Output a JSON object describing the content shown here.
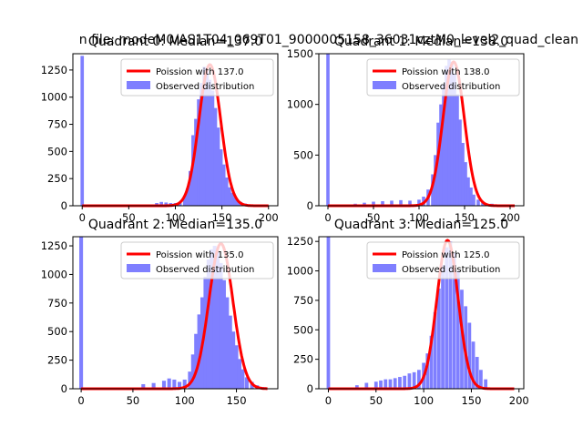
{
  "figure": {
    "suptitle": "n file: modeM0/AS1T04_069T01_9000005158_36031cztM0_level2_quad_clean"
  },
  "chart_data": [
    {
      "type": "bar",
      "title": "Quadrant 0: Median=137.0",
      "median": 137.0,
      "xlim": [
        -10,
        210
      ],
      "ylim": [
        0,
        1400
      ],
      "xticks": [
        0,
        50,
        100,
        150,
        200
      ],
      "yticks": [
        0,
        250,
        500,
        750,
        1000,
        1250
      ],
      "grid": false,
      "legend_position": "upper right",
      "series": [
        {
          "name": "Poission with 137.0",
          "kind": "line",
          "color": "#ff0000",
          "mean": 137.0,
          "peak": 1300
        },
        {
          "name": "Observed distribution",
          "kind": "histogram",
          "color": "#7f7fff",
          "bin_width": 3.6,
          "x": [
            0,
            80,
            85,
            90,
            95,
            100,
            105,
            110,
            113,
            116,
            119,
            122,
            125,
            128,
            131,
            134,
            137,
            140,
            143,
            146,
            149,
            152,
            155,
            158,
            161,
            164,
            167,
            170,
            175,
            180
          ],
          "values": [
            1380,
            25,
            35,
            30,
            25,
            25,
            35,
            85,
            160,
            320,
            650,
            800,
            980,
            1130,
            1280,
            1250,
            1160,
            1060,
            900,
            720,
            520,
            380,
            260,
            170,
            120,
            80,
            50,
            35,
            20,
            10
          ]
        }
      ]
    },
    {
      "type": "bar",
      "title": "Quadrant 1: Median=138.0",
      "median": 138.0,
      "xlim": [
        -10,
        215
      ],
      "ylim": [
        0,
        1500
      ],
      "xticks": [
        0,
        50,
        100,
        150,
        200
      ],
      "yticks": [
        0,
        500,
        1000,
        1500
      ],
      "grid": false,
      "legend_position": "upper right",
      "series": [
        {
          "name": "Poission with 138.0",
          "kind": "line",
          "color": "#ff0000",
          "mean": 138.0,
          "peak": 1420
        },
        {
          "name": "Observed distribution",
          "kind": "histogram",
          "color": "#7f7fff",
          "bin_width": 3.6,
          "x": [
            0,
            30,
            40,
            50,
            60,
            70,
            80,
            90,
            100,
            105,
            110,
            115,
            118,
            121,
            124,
            127,
            130,
            133,
            136,
            139,
            142,
            145,
            148,
            151,
            154,
            157,
            160,
            165,
            170,
            180,
            190
          ],
          "values": [
            1500,
            20,
            30,
            40,
            45,
            50,
            55,
            50,
            60,
            90,
            160,
            310,
            500,
            820,
            1000,
            1200,
            1380,
            1450,
            1420,
            1300,
            1100,
            850,
            620,
            430,
            280,
            180,
            110,
            60,
            40,
            20,
            10
          ]
        }
      ]
    },
    {
      "type": "bar",
      "title": "Quadrant 2: Median=135.0",
      "median": 135.0,
      "xlim": [
        -8,
        190
      ],
      "ylim": [
        0,
        1330
      ],
      "xticks": [
        0,
        50,
        100,
        150
      ],
      "yticks": [
        0,
        250,
        500,
        750,
        1000,
        1250
      ],
      "grid": false,
      "legend_position": "upper right",
      "series": [
        {
          "name": "Poission with 135.0",
          "kind": "line",
          "color": "#ff0000",
          "mean": 135.0,
          "peak": 1270
        },
        {
          "name": "Observed distribution",
          "kind": "histogram",
          "color": "#7f7fff",
          "bin_width": 3.6,
          "x": [
            0,
            60,
            70,
            80,
            85,
            90,
            95,
            100,
            105,
            108,
            111,
            114,
            117,
            120,
            123,
            126,
            129,
            132,
            135,
            138,
            141,
            144,
            147,
            150,
            153,
            156,
            160,
            165,
            170,
            175
          ],
          "values": [
            1330,
            40,
            50,
            70,
            90,
            80,
            60,
            80,
            150,
            300,
            480,
            650,
            800,
            980,
            1130,
            1220,
            1250,
            1200,
            1100,
            950,
            800,
            640,
            500,
            380,
            260,
            170,
            100,
            60,
            30,
            15
          ]
        }
      ]
    },
    {
      "type": "bar",
      "title": "Quadrant 3: Median=125.0",
      "median": 125.0,
      "xlim": [
        -10,
        205
      ],
      "ylim": [
        0,
        1290
      ],
      "xticks": [
        0,
        50,
        100,
        150,
        200
      ],
      "yticks": [
        0,
        250,
        500,
        750,
        1000,
        1250
      ],
      "grid": false,
      "legend_position": "upper right",
      "series": [
        {
          "name": "Poission with 125.0",
          "kind": "line",
          "color": "#ff0000",
          "mean": 125.0,
          "peak": 1260
        },
        {
          "name": "Observed distribution",
          "kind": "histogram",
          "color": "#7f7fff",
          "bin_width": 3.6,
          "x": [
            0,
            30,
            40,
            50,
            55,
            60,
            65,
            70,
            75,
            80,
            85,
            90,
            95,
            100,
            104,
            108,
            112,
            116,
            120,
            124,
            128,
            132,
            136,
            140,
            144,
            148,
            152,
            156,
            160,
            165
          ],
          "values": [
            1290,
            30,
            50,
            60,
            70,
            80,
            80,
            90,
            100,
            110,
            130,
            140,
            160,
            220,
            300,
            450,
            650,
            850,
            1050,
            1200,
            1250,
            1150,
            1000,
            840,
            700,
            560,
            400,
            270,
            160,
            80
          ]
        }
      ]
    }
  ]
}
